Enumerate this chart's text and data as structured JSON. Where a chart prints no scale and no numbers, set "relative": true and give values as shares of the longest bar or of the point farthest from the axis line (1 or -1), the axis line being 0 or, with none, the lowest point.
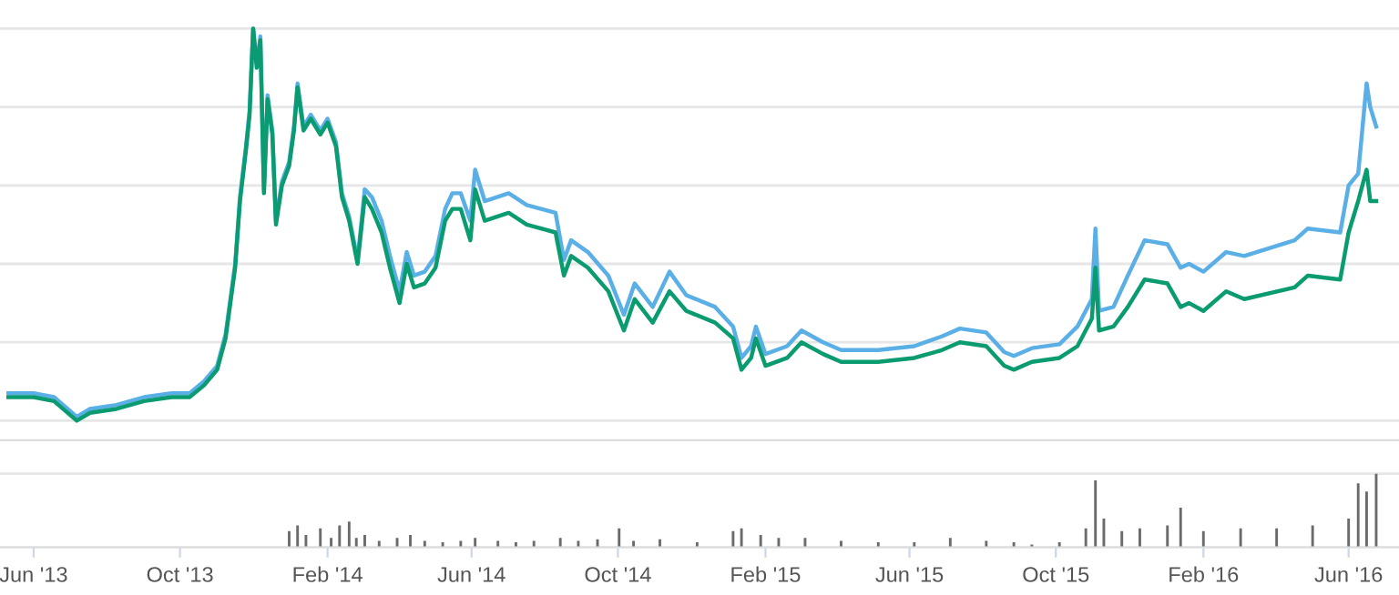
{
  "chart_data": [
    {
      "type": "line",
      "relative": true,
      "grid": "y",
      "tick_labels": false,
      "xlim": [
        "2013-05-04",
        "2016-07-13"
      ],
      "x": [
        "2013-05-11",
        "2013-06-01",
        "2013-06-18",
        "2013-07-07",
        "2013-07-18",
        "2013-08-09",
        "2013-09-01",
        "2013-09-24",
        "2013-10-09",
        "2013-10-21",
        "2013-11-01",
        "2013-11-08",
        "2013-11-16",
        "2013-11-20",
        "2013-11-25",
        "2013-11-28",
        "2013-12-01",
        "2013-12-04",
        "2013-12-07",
        "2013-12-10",
        "2013-12-13",
        "2013-12-17",
        "2013-12-20",
        "2013-12-25",
        "2013-12-31",
        "2014-01-04",
        "2014-01-07",
        "2014-01-12",
        "2014-01-18",
        "2014-01-26",
        "2014-02-01",
        "2014-02-08",
        "2014-02-13",
        "2014-02-19",
        "2014-02-26",
        "2014-03-04",
        "2014-03-10",
        "2014-03-18",
        "2014-03-25",
        "2014-04-02",
        "2014-04-08",
        "2014-04-14",
        "2014-04-23",
        "2014-05-02",
        "2014-05-10",
        "2014-05-16",
        "2014-05-23",
        "2014-05-31",
        "2014-06-04",
        "2014-06-12",
        "2014-07-02",
        "2014-07-17",
        "2014-08-10",
        "2014-08-17",
        "2014-08-23",
        "2014-09-06",
        "2014-09-23",
        "2014-10-06",
        "2014-10-15",
        "2014-10-30",
        "2014-11-13",
        "2014-11-27",
        "2014-12-21",
        "2015-01-05",
        "2015-01-12",
        "2015-01-20",
        "2015-01-24",
        "2015-02-01",
        "2015-02-19",
        "2015-03-03",
        "2015-03-21",
        "2015-04-05",
        "2015-05-06",
        "2015-06-05",
        "2015-06-28",
        "2015-07-13",
        "2015-08-04",
        "2015-08-19",
        "2015-08-27",
        "2015-09-11",
        "2015-10-04",
        "2015-10-19",
        "2015-10-31",
        "2015-11-03",
        "2015-11-06",
        "2015-11-18",
        "2015-11-30",
        "2015-12-14",
        "2016-01-02",
        "2016-01-13",
        "2016-01-20",
        "2016-02-01",
        "2016-02-20",
        "2016-03-06",
        "2016-04-17",
        "2016-04-28",
        "2016-05-25",
        "2016-06-01",
        "2016-06-09",
        "2016-06-16",
        "2016-06-19",
        "2016-06-24"
      ],
      "series": [
        {
          "color": "#5aafe6",
          "values": [
            0.07,
            0.07,
            0.06,
            0.01,
            0.03,
            0.04,
            0.06,
            0.07,
            0.07,
            0.1,
            0.14,
            0.22,
            0.4,
            0.57,
            0.7,
            0.79,
            1.0,
            0.91,
            0.98,
            0.59,
            0.83,
            0.74,
            0.51,
            0.61,
            0.66,
            0.75,
            0.86,
            0.75,
            0.78,
            0.74,
            0.77,
            0.71,
            0.58,
            0.52,
            0.41,
            0.59,
            0.57,
            0.51,
            0.42,
            0.33,
            0.43,
            0.37,
            0.38,
            0.42,
            0.54,
            0.58,
            0.58,
            0.51,
            0.64,
            0.56,
            0.58,
            0.55,
            0.53,
            0.41,
            0.46,
            0.43,
            0.37,
            0.27,
            0.35,
            0.29,
            0.38,
            0.32,
            0.29,
            0.24,
            0.16,
            0.19,
            0.24,
            0.17,
            0.19,
            0.23,
            0.2,
            0.18,
            0.18,
            0.19,
            0.215,
            0.235,
            0.225,
            0.175,
            0.165,
            0.185,
            0.195,
            0.24,
            0.31,
            0.49,
            0.28,
            0.29,
            0.37,
            0.46,
            0.45,
            0.39,
            0.4,
            0.38,
            0.43,
            0.42,
            0.46,
            0.49,
            0.48,
            0.6,
            0.63,
            0.86,
            0.8,
            0.75
          ]
        },
        {
          "color": "#0a9b70",
          "values": [
            0.06,
            0.06,
            0.05,
            0.0,
            0.02,
            0.03,
            0.05,
            0.06,
            0.06,
            0.09,
            0.13,
            0.21,
            0.39,
            0.56,
            0.69,
            0.78,
            1.0,
            0.9,
            0.97,
            0.58,
            0.82,
            0.73,
            0.5,
            0.6,
            0.65,
            0.74,
            0.85,
            0.74,
            0.77,
            0.73,
            0.76,
            0.7,
            0.57,
            0.51,
            0.4,
            0.57,
            0.54,
            0.48,
            0.39,
            0.3,
            0.4,
            0.34,
            0.35,
            0.39,
            0.51,
            0.54,
            0.54,
            0.46,
            0.59,
            0.51,
            0.53,
            0.5,
            0.48,
            0.37,
            0.42,
            0.39,
            0.33,
            0.23,
            0.31,
            0.25,
            0.33,
            0.28,
            0.25,
            0.21,
            0.13,
            0.16,
            0.21,
            0.14,
            0.16,
            0.2,
            0.17,
            0.15,
            0.15,
            0.16,
            0.18,
            0.2,
            0.19,
            0.14,
            0.13,
            0.15,
            0.16,
            0.19,
            0.26,
            0.39,
            0.23,
            0.24,
            0.29,
            0.36,
            0.35,
            0.29,
            0.3,
            0.28,
            0.33,
            0.31,
            0.34,
            0.37,
            0.36,
            0.48,
            0.56,
            0.64,
            0.56,
            0.56
          ]
        }
      ]
    },
    {
      "type": "bar",
      "relative": true,
      "grid": "y",
      "tick_labels": "x",
      "xlim": [
        "2013-05-04",
        "2016-07-13"
      ],
      "xticks": [
        {
          "value": "2013-06-01",
          "label": "Jun '13"
        },
        {
          "value": "2013-10-01",
          "label": "Oct '13"
        },
        {
          "value": "2014-02-01",
          "label": "Feb '14"
        },
        {
          "value": "2014-06-01",
          "label": "Jun '14"
        },
        {
          "value": "2014-10-01",
          "label": "Oct '14"
        },
        {
          "value": "2015-02-01",
          "label": "Feb '15"
        },
        {
          "value": "2015-06-01",
          "label": "Jun '15"
        },
        {
          "value": "2015-10-01",
          "label": "Oct '15"
        },
        {
          "value": "2016-02-01",
          "label": "Feb '16"
        },
        {
          "value": "2016-06-01",
          "label": "Jun '16"
        }
      ],
      "x": [
        "2013-12-31",
        "2014-01-07",
        "2014-01-14",
        "2014-01-26",
        "2014-02-04",
        "2014-02-11",
        "2014-02-19",
        "2014-02-25",
        "2014-03-04",
        "2014-03-16",
        "2014-03-31",
        "2014-04-11",
        "2014-04-23",
        "2014-05-08",
        "2014-05-23",
        "2014-06-04",
        "2014-06-23",
        "2014-07-08",
        "2014-07-23",
        "2014-08-14",
        "2014-08-29",
        "2014-09-14",
        "2014-10-02",
        "2014-10-14",
        "2014-11-05",
        "2014-12-06",
        "2015-01-05",
        "2015-01-12",
        "2015-01-28",
        "2015-02-12",
        "2015-03-06",
        "2015-04-05",
        "2015-05-06",
        "2015-06-05",
        "2015-07-05",
        "2015-08-04",
        "2015-08-27",
        "2015-09-11",
        "2015-10-04",
        "2015-10-26",
        "2015-11-03",
        "2015-11-10",
        "2015-11-25",
        "2015-12-10",
        "2016-01-02",
        "2016-01-13",
        "2016-02-01",
        "2016-03-03",
        "2016-04-02",
        "2016-05-02",
        "2016-06-01",
        "2016-06-09",
        "2016-06-16",
        "2016-06-24"
      ],
      "series": [
        {
          "color": "#6b6b6b",
          "values": [
            0.22,
            0.3,
            0.17,
            0.26,
            0.13,
            0.3,
            0.35,
            0.13,
            0.17,
            0.09,
            0.13,
            0.17,
            0.09,
            0.07,
            0.09,
            0.13,
            0.09,
            0.07,
            0.09,
            0.13,
            0.09,
            0.11,
            0.26,
            0.09,
            0.11,
            0.07,
            0.22,
            0.26,
            0.17,
            0.13,
            0.13,
            0.09,
            0.07,
            0.07,
            0.13,
            0.09,
            0.07,
            0.04,
            0.07,
            0.26,
            0.91,
            0.39,
            0.22,
            0.26,
            0.3,
            0.54,
            0.22,
            0.26,
            0.26,
            0.3,
            0.39,
            0.87,
            0.76,
            1.0
          ]
        }
      ]
    }
  ]
}
